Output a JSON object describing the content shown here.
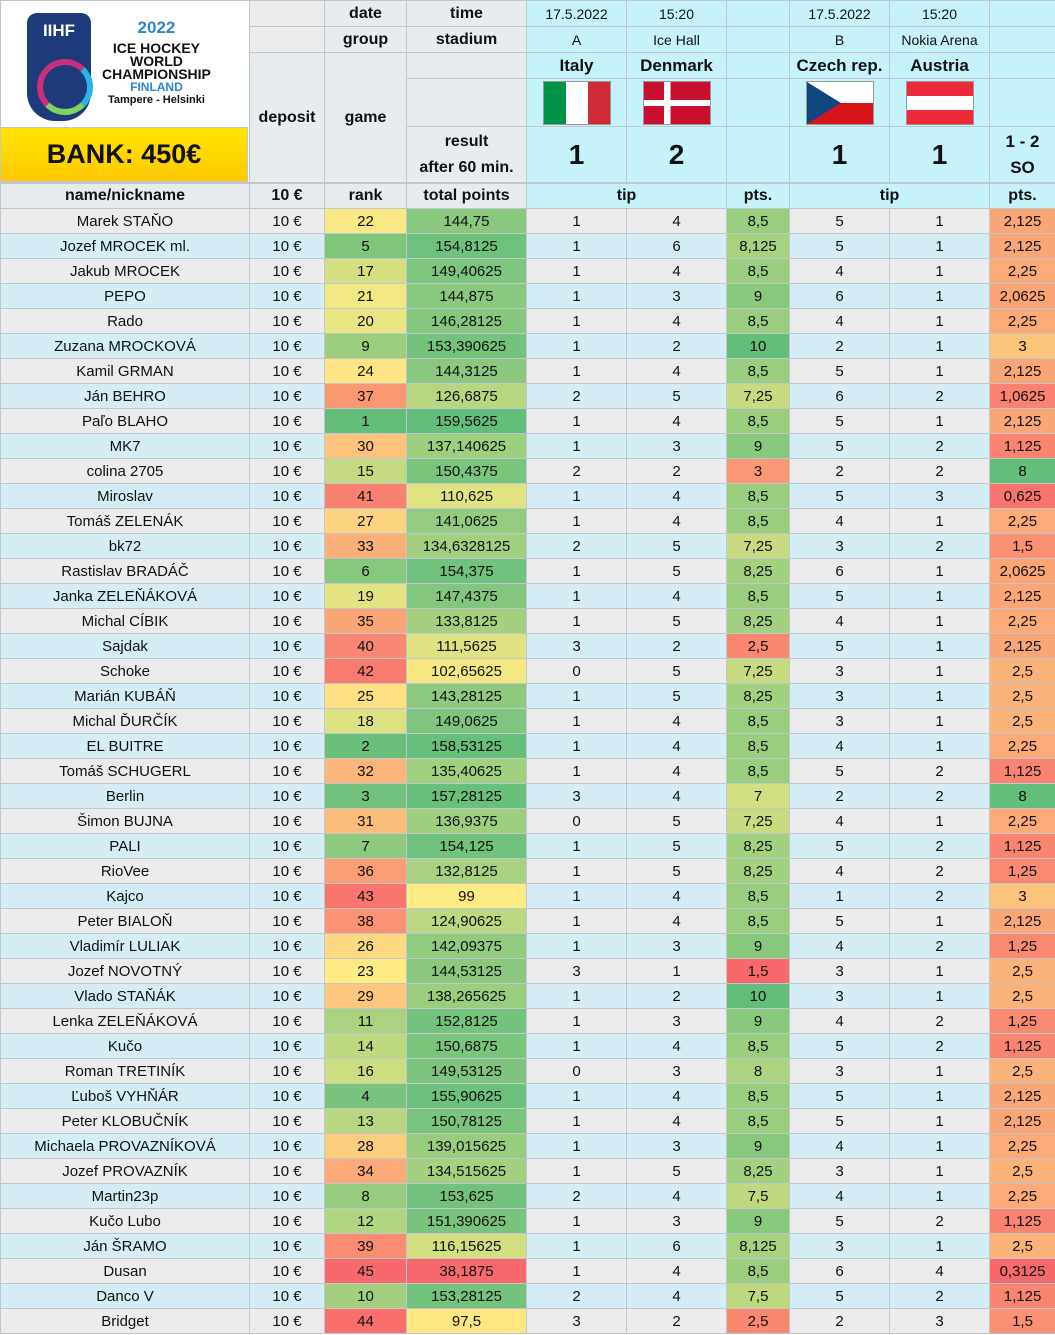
{
  "logo": {
    "year": "2022",
    "line1": "ICE HOCKEY",
    "line2": "WORLD",
    "line3": "CHAMPIONSHIP",
    "line4": "FINLAND",
    "line5": "Tampere - Helsinki",
    "brand": "IIHF"
  },
  "bank": "BANK: 450€",
  "headers": {
    "date": "date",
    "time": "time",
    "group": "group",
    "stadium": "stadium",
    "deposit": "deposit",
    "game": "game",
    "result1": "result",
    "result2": "after 60 min.",
    "name": "name/nickname",
    "deposit_val": "10 €",
    "rank": "rank",
    "total": "total points",
    "tip": "tip",
    "pts": "pts."
  },
  "match1": {
    "date": "17.5.2022",
    "time": "15:20",
    "group": "A",
    "stadium": "Ice Hall",
    "home": "Italy",
    "away": "Denmark",
    "home_score": "1",
    "away_score": "2"
  },
  "match2": {
    "date": "17.5.2022",
    "time": "15:20",
    "group": "B",
    "stadium": "Nokia Arena",
    "home": "Czech rep.",
    "away": "Austria",
    "home_score": "1",
    "away_score": "1",
    "note1": "1 - 2",
    "note2": "SO"
  },
  "rows": [
    [
      "Marek STAŇO",
      "10 €",
      "22",
      "144,75",
      "1",
      "4",
      "8,5",
      "5",
      "1",
      "2,125"
    ],
    [
      "Jozef MROCEK ml.",
      "10 €",
      "5",
      "154,8125",
      "1",
      "6",
      "8,125",
      "5",
      "1",
      "2,125"
    ],
    [
      "Jakub MROCEK",
      "10 €",
      "17",
      "149,40625",
      "1",
      "4",
      "8,5",
      "4",
      "1",
      "2,25"
    ],
    [
      "PEPO",
      "10 €",
      "21",
      "144,875",
      "1",
      "3",
      "9",
      "6",
      "1",
      "2,0625"
    ],
    [
      "Rado",
      "10 €",
      "20",
      "146,28125",
      "1",
      "4",
      "8,5",
      "4",
      "1",
      "2,25"
    ],
    [
      "Zuzana MROCKOVÁ",
      "10 €",
      "9",
      "153,390625",
      "1",
      "2",
      "10",
      "2",
      "1",
      "3"
    ],
    [
      "Kamil GRMAN",
      "10 €",
      "24",
      "144,3125",
      "1",
      "4",
      "8,5",
      "5",
      "1",
      "2,125"
    ],
    [
      "Ján BEHRO",
      "10 €",
      "37",
      "126,6875",
      "2",
      "5",
      "7,25",
      "6",
      "2",
      "1,0625"
    ],
    [
      "Paľo BLAHO",
      "10 €",
      "1",
      "159,5625",
      "1",
      "4",
      "8,5",
      "5",
      "1",
      "2,125"
    ],
    [
      "MK7",
      "10 €",
      "30",
      "137,140625",
      "1",
      "3",
      "9",
      "5",
      "2",
      "1,125"
    ],
    [
      "colina 2705",
      "10 €",
      "15",
      "150,4375",
      "2",
      "2",
      "3",
      "2",
      "2",
      "8"
    ],
    [
      "Miroslav",
      "10 €",
      "41",
      "110,625",
      "1",
      "4",
      "8,5",
      "5",
      "3",
      "0,625"
    ],
    [
      "Tomáš ZELENÁK",
      "10 €",
      "27",
      "141,0625",
      "1",
      "4",
      "8,5",
      "4",
      "1",
      "2,25"
    ],
    [
      "bk72",
      "10 €",
      "33",
      "134,6328125",
      "2",
      "5",
      "7,25",
      "3",
      "2",
      "1,5"
    ],
    [
      "Rastislav BRADÁČ",
      "10 €",
      "6",
      "154,375",
      "1",
      "5",
      "8,25",
      "6",
      "1",
      "2,0625"
    ],
    [
      "Janka ZELEŇÁKOVÁ",
      "10 €",
      "19",
      "147,4375",
      "1",
      "4",
      "8,5",
      "5",
      "1",
      "2,125"
    ],
    [
      "Michal CÍBIK",
      "10 €",
      "35",
      "133,8125",
      "1",
      "5",
      "8,25",
      "4",
      "1",
      "2,25"
    ],
    [
      "Sajdak",
      "10 €",
      "40",
      "111,5625",
      "3",
      "2",
      "2,5",
      "5",
      "1",
      "2,125"
    ],
    [
      "Schoke",
      "10 €",
      "42",
      "102,65625",
      "0",
      "5",
      "7,25",
      "3",
      "1",
      "2,5"
    ],
    [
      "Marián KUBÁŇ",
      "10 €",
      "25",
      "143,28125",
      "1",
      "5",
      "8,25",
      "3",
      "1",
      "2,5"
    ],
    [
      "Michal ĎURČÍK",
      "10 €",
      "18",
      "149,0625",
      "1",
      "4",
      "8,5",
      "3",
      "1",
      "2,5"
    ],
    [
      "EL BUITRE",
      "10 €",
      "2",
      "158,53125",
      "1",
      "4",
      "8,5",
      "4",
      "1",
      "2,25"
    ],
    [
      "Tomáš SCHUGERL",
      "10 €",
      "32",
      "135,40625",
      "1",
      "4",
      "8,5",
      "5",
      "2",
      "1,125"
    ],
    [
      "Berlin",
      "10 €",
      "3",
      "157,28125",
      "3",
      "4",
      "7",
      "2",
      "2",
      "8"
    ],
    [
      "Šimon BUJNA",
      "10 €",
      "31",
      "136,9375",
      "0",
      "5",
      "7,25",
      "4",
      "1",
      "2,25"
    ],
    [
      "PALI",
      "10 €",
      "7",
      "154,125",
      "1",
      "5",
      "8,25",
      "5",
      "2",
      "1,125"
    ],
    [
      "RioVee",
      "10 €",
      "36",
      "132,8125",
      "1",
      "5",
      "8,25",
      "4",
      "2",
      "1,25"
    ],
    [
      "Kajco",
      "10 €",
      "43",
      "99",
      "1",
      "4",
      "8,5",
      "1",
      "2",
      "3"
    ],
    [
      "Peter BIALOŇ",
      "10 €",
      "38",
      "124,90625",
      "1",
      "4",
      "8,5",
      "5",
      "1",
      "2,125"
    ],
    [
      "Vladimír LULIAK",
      "10 €",
      "26",
      "142,09375",
      "1",
      "3",
      "9",
      "4",
      "2",
      "1,25"
    ],
    [
      "Jozef NOVOTNÝ",
      "10 €",
      "23",
      "144,53125",
      "3",
      "1",
      "1,5",
      "3",
      "1",
      "2,5"
    ],
    [
      "Vlado STAŇÁK",
      "10 €",
      "29",
      "138,265625",
      "1",
      "2",
      "10",
      "3",
      "1",
      "2,5"
    ],
    [
      "Lenka ZELEŇÁKOVÁ",
      "10 €",
      "11",
      "152,8125",
      "1",
      "3",
      "9",
      "4",
      "2",
      "1,25"
    ],
    [
      "Kučo",
      "10 €",
      "14",
      "150,6875",
      "1",
      "4",
      "8,5",
      "5",
      "2",
      "1,125"
    ],
    [
      "Roman TRETINÍK",
      "10 €",
      "16",
      "149,53125",
      "0",
      "3",
      "8",
      "3",
      "1",
      "2,5"
    ],
    [
      "Ľuboš VYHŇÁR",
      "10 €",
      "4",
      "155,90625",
      "1",
      "4",
      "8,5",
      "5",
      "1",
      "2,125"
    ],
    [
      "Peter KLOBUČNÍK",
      "10 €",
      "13",
      "150,78125",
      "1",
      "4",
      "8,5",
      "5",
      "1",
      "2,125"
    ],
    [
      "Michaela PROVAZNÍKOVÁ",
      "10 €",
      "28",
      "139,015625",
      "1",
      "3",
      "9",
      "4",
      "1",
      "2,25"
    ],
    [
      "Jozef PROVAZNÍK",
      "10 €",
      "34",
      "134,515625",
      "1",
      "5",
      "8,25",
      "3",
      "1",
      "2,5"
    ],
    [
      "Martin23p",
      "10 €",
      "8",
      "153,625",
      "2",
      "4",
      "7,5",
      "4",
      "1",
      "2,25"
    ],
    [
      "Kučo Lubo",
      "10 €",
      "12",
      "151,390625",
      "1",
      "3",
      "9",
      "5",
      "2",
      "1,125"
    ],
    [
      "Ján ŠRAMO",
      "10 €",
      "39",
      "116,15625",
      "1",
      "6",
      "8,125",
      "3",
      "1",
      "2,5"
    ],
    [
      "Dusan",
      "10 €",
      "45",
      "38,1875",
      "1",
      "4",
      "8,5",
      "6",
      "4",
      "0,3125"
    ],
    [
      "Danco V",
      "10 €",
      "10",
      "153,28125",
      "2",
      "4",
      "7,5",
      "5",
      "2",
      "1,125"
    ],
    [
      "Bridget",
      "10 €",
      "44",
      "97,5",
      "3",
      "2",
      "2,5",
      "2",
      "3",
      "1,5"
    ]
  ],
  "colors": {
    "green": "#63be7b",
    "yellow": "#ffeb84",
    "red": "#f8696b",
    "cyan": "#c6f2fa",
    "bank": "#ffd800"
  }
}
